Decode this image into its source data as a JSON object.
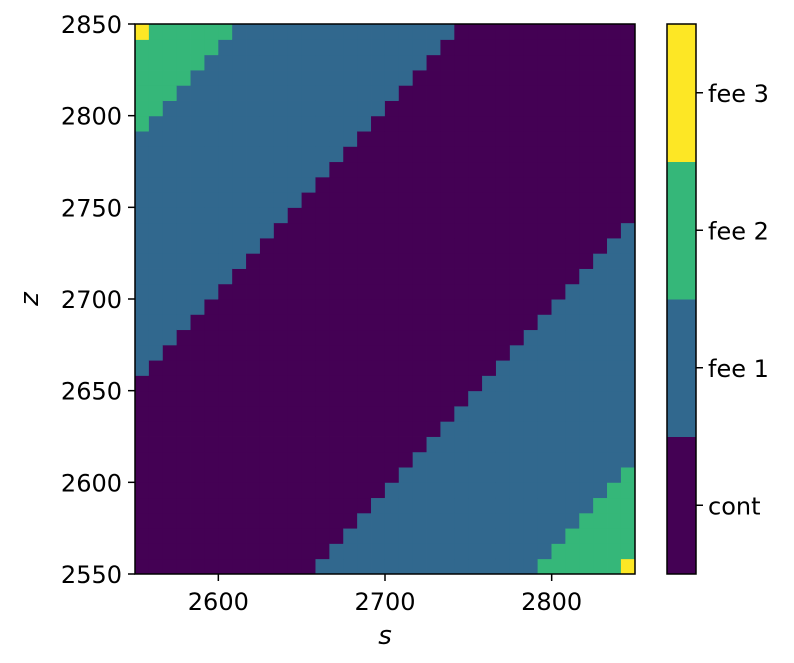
{
  "chart_data": {
    "type": "heatmap",
    "title": "",
    "xlabel": "s",
    "ylabel": "z",
    "xlim": [
      2550,
      2850
    ],
    "ylim": [
      2550,
      2850
    ],
    "cell_size": 8.33,
    "x_ticks": [
      2600,
      2700,
      2800
    ],
    "y_ticks": [
      2550,
      2600,
      2650,
      2700,
      2750,
      2800,
      2850
    ],
    "classes": [
      {
        "label": "cont",
        "color": "#440154"
      },
      {
        "label": "fee 1",
        "color": "#31688e"
      },
      {
        "label": "fee 2",
        "color": "#35b779"
      },
      {
        "label": "fee 3",
        "color": "#fde725"
      }
    ],
    "grid": false,
    "legend": "colorbar-right"
  }
}
